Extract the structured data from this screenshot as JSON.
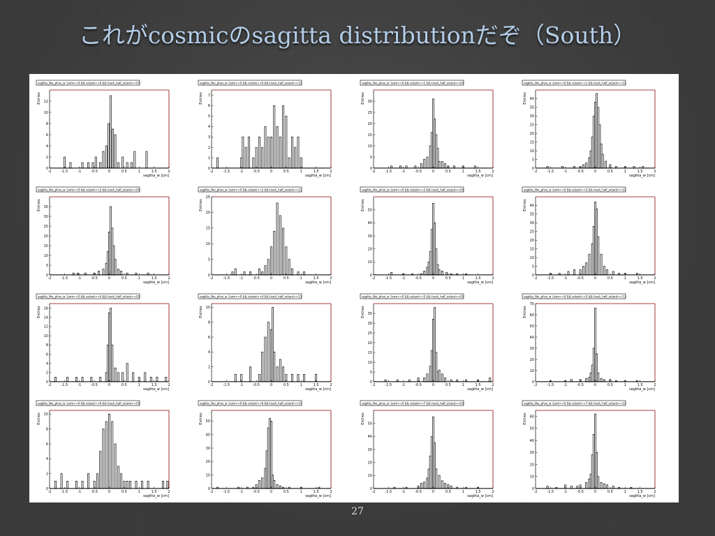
{
  "slide": {
    "title": "これがcosmicのsagitta distributionだぞ（South）",
    "page_number": "27"
  },
  "chart_data": [
    {
      "type": "bar",
      "title": "sagitta_like_phsx_w  {arm==0 && octant==0 && track_half_octant==0}",
      "xlabel": "sagitta_w [cm]",
      "ylabel": "Entries",
      "xlim": [
        -2,
        2
      ],
      "ylim": [
        0,
        14
      ],
      "yticks": [
        0,
        2,
        4,
        6,
        8,
        10,
        12
      ],
      "x_bin_centers": [
        -1.5,
        -1.3,
        -0.9,
        -0.7,
        -0.55,
        -0.45,
        -0.3,
        -0.2,
        -0.1,
        -0.02,
        0.05,
        0.12,
        0.2,
        0.3,
        0.45,
        0.6,
        0.75,
        0.85,
        1.25
      ],
      "values": [
        2,
        1,
        1,
        1,
        1,
        2,
        1,
        3,
        4,
        8,
        13,
        7,
        6,
        1,
        2,
        1,
        1,
        3,
        3
      ]
    },
    {
      "type": "bar",
      "title": "sagitta_like_phsx_w  {arm==0 && octant==0 && track_half_octant==1}",
      "xlabel": "sagitta_w [cm]",
      "ylabel": "Entries",
      "xlim": [
        -2,
        2
      ],
      "ylim": [
        0,
        7.5
      ],
      "yticks": [
        0,
        1,
        2,
        3,
        4,
        5,
        6,
        7
      ],
      "x_bin_centers": [
        -1.8,
        -1.0,
        -0.95,
        -0.85,
        -0.75,
        -0.6,
        -0.5,
        -0.4,
        -0.3,
        -0.2,
        -0.1,
        0.0,
        0.1,
        0.2,
        0.3,
        0.4,
        0.5,
        0.6,
        0.7,
        0.8,
        0.9,
        1.0
      ],
      "values": [
        1,
        1,
        3,
        2,
        3,
        1,
        2,
        3,
        2,
        4,
        3,
        3,
        6,
        4,
        3,
        6,
        5,
        1,
        3,
        2,
        3,
        1
      ]
    },
    {
      "type": "bar",
      "title": "sagitta_like_phsx_w  {arm==0 && octant==1 && track_half_octant==0}",
      "xlabel": "sagitta_w [cm]",
      "ylabel": "Entries",
      "xlim": [
        -2,
        2
      ],
      "ylim": [
        0,
        35
      ],
      "yticks": [
        0,
        5,
        10,
        15,
        20,
        25,
        30
      ],
      "x_bin_centers": [
        -1.4,
        -1.1,
        -0.9,
        -0.6,
        -0.4,
        -0.3,
        -0.2,
        -0.1,
        -0.05,
        0.0,
        0.05,
        0.1,
        0.15,
        0.2,
        0.3,
        0.4,
        0.5,
        0.7,
        1.0,
        1.4
      ],
      "values": [
        1,
        1,
        1,
        1,
        2,
        4,
        5,
        10,
        16,
        31,
        22,
        15,
        9,
        3,
        3,
        2,
        1,
        1,
        1,
        1
      ]
    },
    {
      "type": "bar",
      "title": "sagitta_like_phsx_w  {arm==0 && octant==1 && track_half_octant==1}",
      "xlabel": "sagitta_w [cm]",
      "ylabel": "Entries",
      "xlim": [
        -2,
        2
      ],
      "ylim": [
        0,
        45
      ],
      "yticks": [
        0,
        5,
        10,
        15,
        20,
        25,
        30,
        35,
        40
      ],
      "x_bin_centers": [
        -1.6,
        -1.1,
        -0.7,
        -0.5,
        -0.4,
        -0.3,
        -0.2,
        -0.15,
        -0.1,
        -0.05,
        0.0,
        0.05,
        0.1,
        0.15,
        0.2,
        0.25,
        0.35,
        0.5,
        0.7,
        1.0,
        1.3,
        1.6
      ],
      "values": [
        1,
        1,
        1,
        1,
        2,
        3,
        6,
        10,
        18,
        30,
        38,
        43,
        35,
        25,
        14,
        8,
        4,
        2,
        1,
        1,
        1,
        1
      ]
    },
    {
      "type": "bar",
      "title": "sagitta_like_phsx_w  {arm==0 && octant==2 && track_half_octant==0}",
      "xlabel": "sagitta_w [cm]",
      "ylabel": "Entries",
      "xlim": [
        -2,
        2
      ],
      "ylim": [
        0,
        40
      ],
      "yticks": [
        0,
        5,
        10,
        15,
        20,
        25,
        30,
        35
      ],
      "x_bin_centers": [
        -1.2,
        -1.05,
        -0.8,
        -0.5,
        -0.35,
        -0.2,
        -0.1,
        -0.05,
        0.0,
        0.05,
        0.1,
        0.15,
        0.2,
        0.3,
        0.4,
        0.6,
        0.9,
        1.3
      ],
      "values": [
        1,
        1,
        1,
        1,
        2,
        3,
        6,
        12,
        22,
        35,
        24,
        15,
        8,
        3,
        2,
        1,
        1,
        1
      ]
    },
    {
      "type": "bar",
      "title": "sagitta_like_phsx_w  {arm==0 && octant==2 && track_half_octant==1}",
      "xlabel": "sagitta_w [cm]",
      "ylabel": "Entries",
      "xlim": [
        -2,
        2
      ],
      "ylim": [
        0,
        25
      ],
      "yticks": [
        0,
        5,
        10,
        15,
        20,
        25
      ],
      "x_bin_centers": [
        -1.3,
        -1.2,
        -0.9,
        -0.7,
        -0.4,
        -0.3,
        -0.2,
        -0.1,
        0.0,
        0.1,
        0.2,
        0.3,
        0.4,
        0.5,
        0.6,
        0.7,
        0.9,
        1.1
      ],
      "values": [
        1,
        2,
        1,
        1,
        2,
        1,
        3,
        5,
        9,
        14,
        23,
        19,
        15,
        9,
        5,
        2,
        1,
        1
      ]
    },
    {
      "type": "bar",
      "title": "sagitta_like_phsx_w  {arm==0 && octant==3 && track_half_octant==0}",
      "xlabel": "sagitta_w [cm]",
      "ylabel": "Entries",
      "xlim": [
        -2,
        2
      ],
      "ylim": [
        0,
        60
      ],
      "yticks": [
        0,
        10,
        20,
        30,
        40,
        50
      ],
      "x_bin_centers": [
        -1.4,
        -1.0,
        -0.7,
        -0.4,
        -0.3,
        -0.2,
        -0.15,
        -0.1,
        -0.05,
        0.0,
        0.05,
        0.1,
        0.15,
        0.2,
        0.3,
        0.45,
        0.6,
        0.8,
        1.1
      ],
      "values": [
        2,
        1,
        1,
        1,
        3,
        6,
        10,
        18,
        35,
        55,
        40,
        20,
        8,
        4,
        3,
        2,
        1,
        1,
        1
      ]
    },
    {
      "type": "bar",
      "title": "sagitta_like_phsx_w  {arm==0 && octant==3 && track_half_octant==1}",
      "xlabel": "sagitta_w [cm]",
      "ylabel": "Entries",
      "xlim": [
        -2,
        2
      ],
      "ylim": [
        0,
        45
      ],
      "yticks": [
        0,
        5,
        10,
        15,
        20,
        25,
        30,
        35,
        40
      ],
      "x_bin_centers": [
        -1.5,
        -1.2,
        -0.9,
        -0.7,
        -0.5,
        -0.4,
        -0.3,
        -0.2,
        -0.1,
        -0.05,
        0.0,
        0.05,
        0.1,
        0.2,
        0.3,
        0.4,
        0.6,
        0.8,
        1.0,
        1.4
      ],
      "values": [
        1,
        1,
        2,
        3,
        3,
        5,
        7,
        12,
        18,
        28,
        42,
        38,
        22,
        12,
        5,
        3,
        2,
        1,
        1,
        1
      ]
    },
    {
      "type": "bar",
      "title": "sagitta_like_phsx_w  {arm==0 && octant==4 && track_half_octant==0}",
      "xlabel": "sagitta_w [cm]",
      "ylabel": "Entries",
      "xlim": [
        -2,
        2
      ],
      "ylim": [
        0,
        17
      ],
      "yticks": [
        0,
        2,
        4,
        6,
        8,
        10,
        12,
        14,
        16
      ],
      "x_bin_centers": [
        -1.8,
        -1.4,
        -1.1,
        -0.9,
        -0.6,
        -0.3,
        -0.1,
        -0.05,
        0.0,
        0.05,
        0.1,
        0.2,
        0.3,
        0.45,
        0.6,
        0.8,
        1.0,
        1.2,
        1.4,
        1.6,
        1.9
      ],
      "values": [
        1,
        1,
        1,
        1,
        1,
        1,
        2,
        8,
        15,
        16,
        8,
        3,
        2,
        2,
        4,
        2,
        1,
        2,
        1,
        1,
        1
      ]
    },
    {
      "type": "bar",
      "title": "sagitta_like_phsx_w  {arm==0 && octant==4 && track_half_octant==1}",
      "xlabel": "sagitta_w [cm]",
      "ylabel": "Entries",
      "xlim": [
        -2,
        2
      ],
      "ylim": [
        0,
        10.5
      ],
      "yticks": [
        0,
        2,
        4,
        6,
        8,
        10
      ],
      "x_bin_centers": [
        -1.2,
        -1.0,
        -0.7,
        -0.4,
        -0.3,
        -0.2,
        -0.1,
        0.0,
        0.05,
        0.1,
        0.2,
        0.3,
        0.4,
        0.5,
        0.7,
        0.9,
        1.1,
        1.5
      ],
      "values": [
        1,
        1,
        2,
        1,
        4,
        6,
        8,
        7,
        10,
        4,
        2,
        3,
        2,
        1,
        1,
        1,
        1,
        1
      ]
    },
    {
      "type": "bar",
      "title": "sagitta_like_phsx_w  {arm==0 && octant==5 && track_half_octant==0}",
      "xlabel": "sagitta_w [cm]",
      "ylabel": "Entries",
      "xlim": [
        -2,
        2
      ],
      "ylim": [
        0,
        40
      ],
      "yticks": [
        0,
        5,
        10,
        15,
        20,
        25,
        30,
        35
      ],
      "x_bin_centers": [
        -1.6,
        -1.2,
        -0.8,
        -0.5,
        -0.3,
        -0.2,
        -0.1,
        -0.05,
        0.0,
        0.05,
        0.1,
        0.15,
        0.2,
        0.3,
        0.4,
        0.6,
        0.8,
        1.1,
        1.5,
        1.9
      ],
      "values": [
        1,
        1,
        1,
        2,
        2,
        4,
        8,
        16,
        32,
        38,
        15,
        5,
        6,
        4,
        2,
        1,
        1,
        1,
        1,
        2
      ]
    },
    {
      "type": "bar",
      "title": "sagitta_like_phsx_w  {arm==0 && octant==5 && track_half_octant==1}",
      "xlabel": "sagitta_w [cm]",
      "ylabel": "Entries",
      "xlim": [
        -2,
        2
      ],
      "ylim": [
        0,
        70
      ],
      "yticks": [
        0,
        10,
        20,
        30,
        40,
        50,
        60,
        70
      ],
      "x_bin_centers": [
        -1.5,
        -1.0,
        -0.8,
        -0.5,
        -0.3,
        -0.2,
        -0.15,
        -0.1,
        -0.05,
        0.0,
        0.05,
        0.1,
        0.2,
        0.3,
        0.5,
        0.7,
        1.0,
        1.4
      ],
      "values": [
        1,
        1,
        2,
        2,
        3,
        4,
        8,
        15,
        30,
        66,
        25,
        8,
        3,
        2,
        2,
        1,
        1,
        1
      ]
    },
    {
      "type": "bar",
      "title": "sagitta_like_phsx_w  {arm==0 && octant==6 && track_half_octant==0}",
      "xlabel": "sagitta_w [cm]",
      "ylabel": "Entries",
      "xlim": [
        -2,
        2
      ],
      "ylim": [
        0,
        10.5
      ],
      "yticks": [
        0,
        2,
        4,
        6,
        8,
        10
      ],
      "x_bin_centers": [
        -1.8,
        -1.6,
        -1.4,
        -1.1,
        -0.9,
        -0.7,
        -0.5,
        -0.4,
        -0.3,
        -0.2,
        -0.1,
        0.0,
        0.1,
        0.2,
        0.3,
        0.4,
        0.5,
        0.6,
        0.7,
        0.9,
        1.1,
        1.3,
        1.8,
        1.95
      ],
      "values": [
        1,
        2,
        1,
        1,
        1,
        2,
        1,
        2,
        5,
        8,
        9,
        10,
        9,
        6,
        3,
        2,
        1,
        1,
        1,
        1,
        1,
        1,
        1,
        1
      ]
    },
    {
      "type": "bar",
      "title": "sagitta_like_phsx_w  {arm==0 && octant==6 && track_half_octant==1}",
      "xlabel": "sagitta_w [cm]",
      "ylabel": "Entries",
      "xlim": [
        -2,
        2
      ],
      "ylim": [
        0,
        58
      ],
      "yticks": [
        0,
        10,
        20,
        30,
        40,
        50
      ],
      "x_bin_centers": [
        -1.8,
        -1.1,
        -0.8,
        -0.6,
        -0.5,
        -0.4,
        -0.3,
        -0.2,
        -0.15,
        -0.1,
        -0.05,
        0.0,
        0.05,
        0.1,
        0.2,
        0.3,
        0.4,
        0.6,
        1.0,
        1.6
      ],
      "values": [
        1,
        1,
        1,
        1,
        3,
        6,
        8,
        15,
        28,
        45,
        52,
        50,
        10,
        6,
        3,
        2,
        1,
        1,
        1,
        1
      ]
    },
    {
      "type": "bar",
      "title": "sagitta_like_phsx_w  {arm==0 && octant==7 && track_half_octant==0}",
      "xlabel": "sagitta_w [cm]",
      "ylabel": "Entries",
      "xlim": [
        -2,
        2
      ],
      "ylim": [
        0,
        60
      ],
      "yticks": [
        0,
        10,
        20,
        30,
        40,
        50
      ],
      "x_bin_centers": [
        -1.3,
        -0.9,
        -0.5,
        -0.4,
        -0.3,
        -0.2,
        -0.15,
        -0.1,
        -0.05,
        0.0,
        0.05,
        0.1,
        0.2,
        0.3,
        0.4,
        0.5,
        0.6,
        0.8,
        1.1,
        1.5
      ],
      "values": [
        1,
        1,
        2,
        4,
        5,
        8,
        15,
        25,
        40,
        55,
        35,
        15,
        10,
        6,
        4,
        3,
        2,
        1,
        1,
        1
      ]
    },
    {
      "type": "bar",
      "title": "sagitta_like_phsx_w  {arm==0 && octant==7 && track_half_octant==1}",
      "xlabel": "sagitta_w [cm]",
      "ylabel": "Entries",
      "xlim": [
        -2,
        2
      ],
      "ylim": [
        0,
        65
      ],
      "yticks": [
        0,
        10,
        20,
        30,
        40,
        50,
        60
      ],
      "x_bin_centers": [
        -1.6,
        -1.3,
        -1.0,
        -0.8,
        -0.6,
        -0.5,
        -0.3,
        -0.2,
        -0.15,
        -0.1,
        -0.05,
        0.0,
        0.05,
        0.1,
        0.2,
        0.3,
        0.4,
        0.6,
        0.8,
        1.2
      ],
      "values": [
        2,
        1,
        3,
        2,
        2,
        3,
        5,
        8,
        12,
        28,
        45,
        62,
        30,
        10,
        5,
        4,
        3,
        2,
        1,
        1
      ]
    }
  ]
}
